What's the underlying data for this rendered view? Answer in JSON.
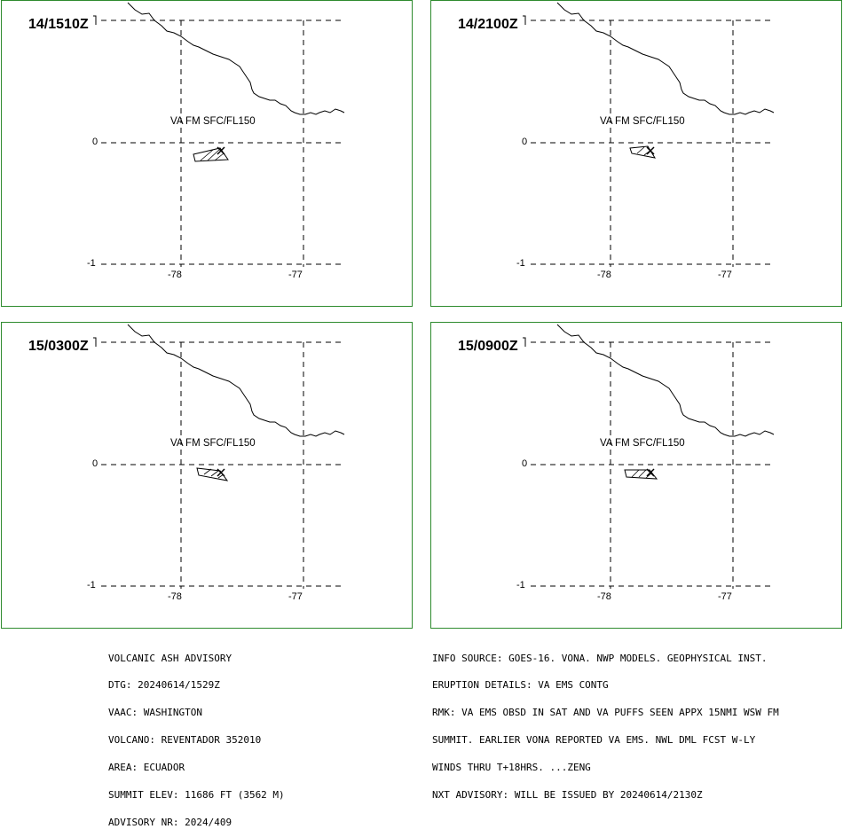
{
  "panels": [
    {
      "time": "14/1510Z",
      "va_label": "VA FM SFC/FL150"
    },
    {
      "time": "14/2100Z",
      "va_label": "VA FM SFC/FL150"
    },
    {
      "time": "15/0300Z",
      "va_label": "VA FM SFC/FL150"
    },
    {
      "time": "15/0900Z",
      "va_label": "VA FM SFC/FL150"
    }
  ],
  "axis": {
    "lat_ticks": [
      "0",
      "-1"
    ],
    "lon_ticks": [
      "-78",
      "-77"
    ]
  },
  "colors": {
    "panel_border": "#2e8b2e",
    "lines": "#000000"
  },
  "advisory_left": [
    "VOLCANIC ASH ADVISORY",
    "DTG: 20240614/1529Z",
    "VAAC: WASHINGTON",
    "VOLCANO: REVENTADOR 352010",
    "AREA: ECUADOR",
    "SUMMIT ELEV: 11686 FT (3562 M)",
    "ADVISORY NR: 2024/409"
  ],
  "advisory_right": [
    "INFO SOURCE: GOES-16. VONA. NWP MODELS. GEOPHYSICAL INST.",
    "ERUPTION DETAILS: VA EMS CONTG",
    "RMK: VA EMS OBSD IN SAT AND VA PUFFS SEEN APPX 15NMI WSW FM",
    "SUMMIT. EARLIER VONA REPORTED VA EMS. NWL DML FCST W-LY",
    "WINDS THRU T+18HRS. ...ZENG",
    "NXT ADVISORY: WILL BE ISSUED BY 20240614/2130Z"
  ]
}
